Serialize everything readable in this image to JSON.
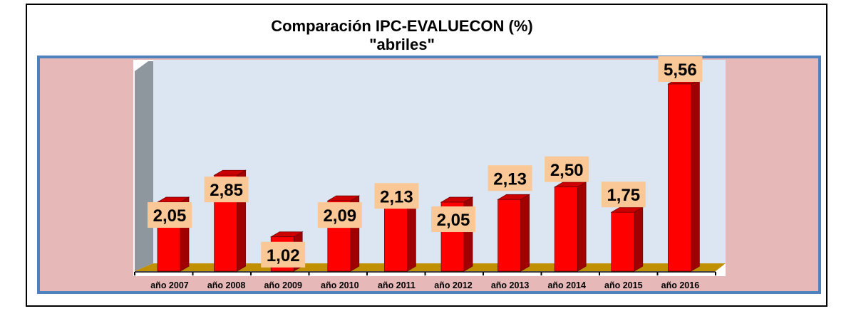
{
  "chart_data": {
    "type": "bar",
    "title": "Comparación IPC-EVALUECON (%)",
    "subtitle": "\"abriles\"",
    "xlabel": "",
    "ylabel": "",
    "ylim": [
      0,
      6
    ],
    "grid": false,
    "legend": "none",
    "categories": [
      "año 2007",
      "año 2008",
      "año 2009",
      "año 2010",
      "año 2011",
      "año 2012",
      "año 2013",
      "año 2014",
      "año 2015",
      "año 2016"
    ],
    "values": [
      2.05,
      2.85,
      1.02,
      2.09,
      2.13,
      2.05,
      2.13,
      2.5,
      1.75,
      5.56
    ],
    "data_labels": [
      "2,05",
      "2,85",
      "1,02",
      "2,09",
      "2,13",
      "2,05",
      "2,13",
      "2,50",
      "1,75",
      "5,56"
    ],
    "colors": {
      "bar": "#FF0000",
      "bar_side": "#A00000",
      "bar_top": "#CC0000",
      "label_bg": "#FAC896",
      "plot_bg": "#DCE6F2",
      "floor": "#C09000",
      "wall": "#8E969E",
      "frame": "#E6B8B7",
      "frame_border": "#4F81BD"
    }
  }
}
